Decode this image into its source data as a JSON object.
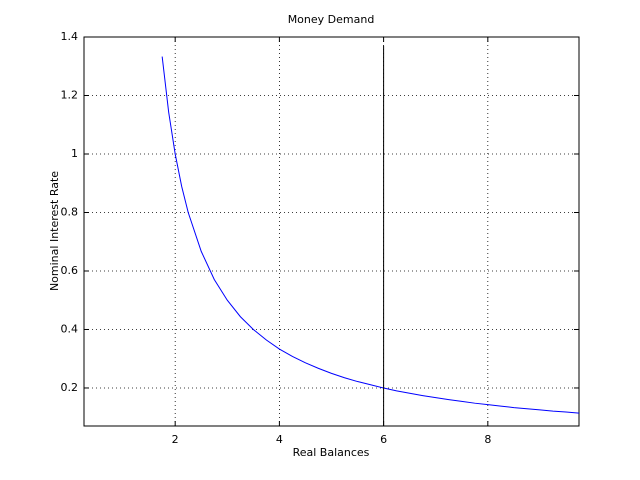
{
  "chart_data": {
    "type": "line",
    "title": "Money Demand",
    "x_label": "Real Balances",
    "y_label": "Nominal Interest Rate",
    "xlim": [
      0.25,
      9.75
    ],
    "ylim": [
      0.07,
      1.4
    ],
    "xticks": [
      2,
      4,
      6,
      8
    ],
    "yticks": [
      0.2,
      0.4,
      0.6,
      0.8,
      1,
      1.2,
      1.4
    ],
    "grid": true,
    "series": [
      {
        "color": "#0000ff",
        "x": [
          1.75,
          1.875,
          2,
          2.125,
          2.25,
          2.5,
          2.75,
          3,
          3.25,
          3.5,
          3.75,
          4,
          4.25,
          4.5,
          4.75,
          5,
          5.25,
          5.5,
          5.75,
          6,
          6.25,
          6.5,
          6.75,
          7,
          7.25,
          7.5,
          7.75,
          8,
          8.25,
          8.5,
          8.75,
          9,
          9.25,
          9.5,
          9.75
        ],
        "values": [
          1.333,
          1.143,
          1,
          0.889,
          0.8,
          0.667,
          0.571,
          0.5,
          0.444,
          0.4,
          0.364,
          0.333,
          0.308,
          0.286,
          0.267,
          0.25,
          0.235,
          0.222,
          0.211,
          0.2,
          0.19,
          0.182,
          0.174,
          0.167,
          0.16,
          0.154,
          0.148,
          0.143,
          0.138,
          0.133,
          0.129,
          0.125,
          0.121,
          0.118,
          0.114
        ]
      },
      {
        "color": "#000000",
        "x": [
          6,
          6
        ],
        "values": [
          0.07,
          1.37
        ]
      }
    ]
  }
}
